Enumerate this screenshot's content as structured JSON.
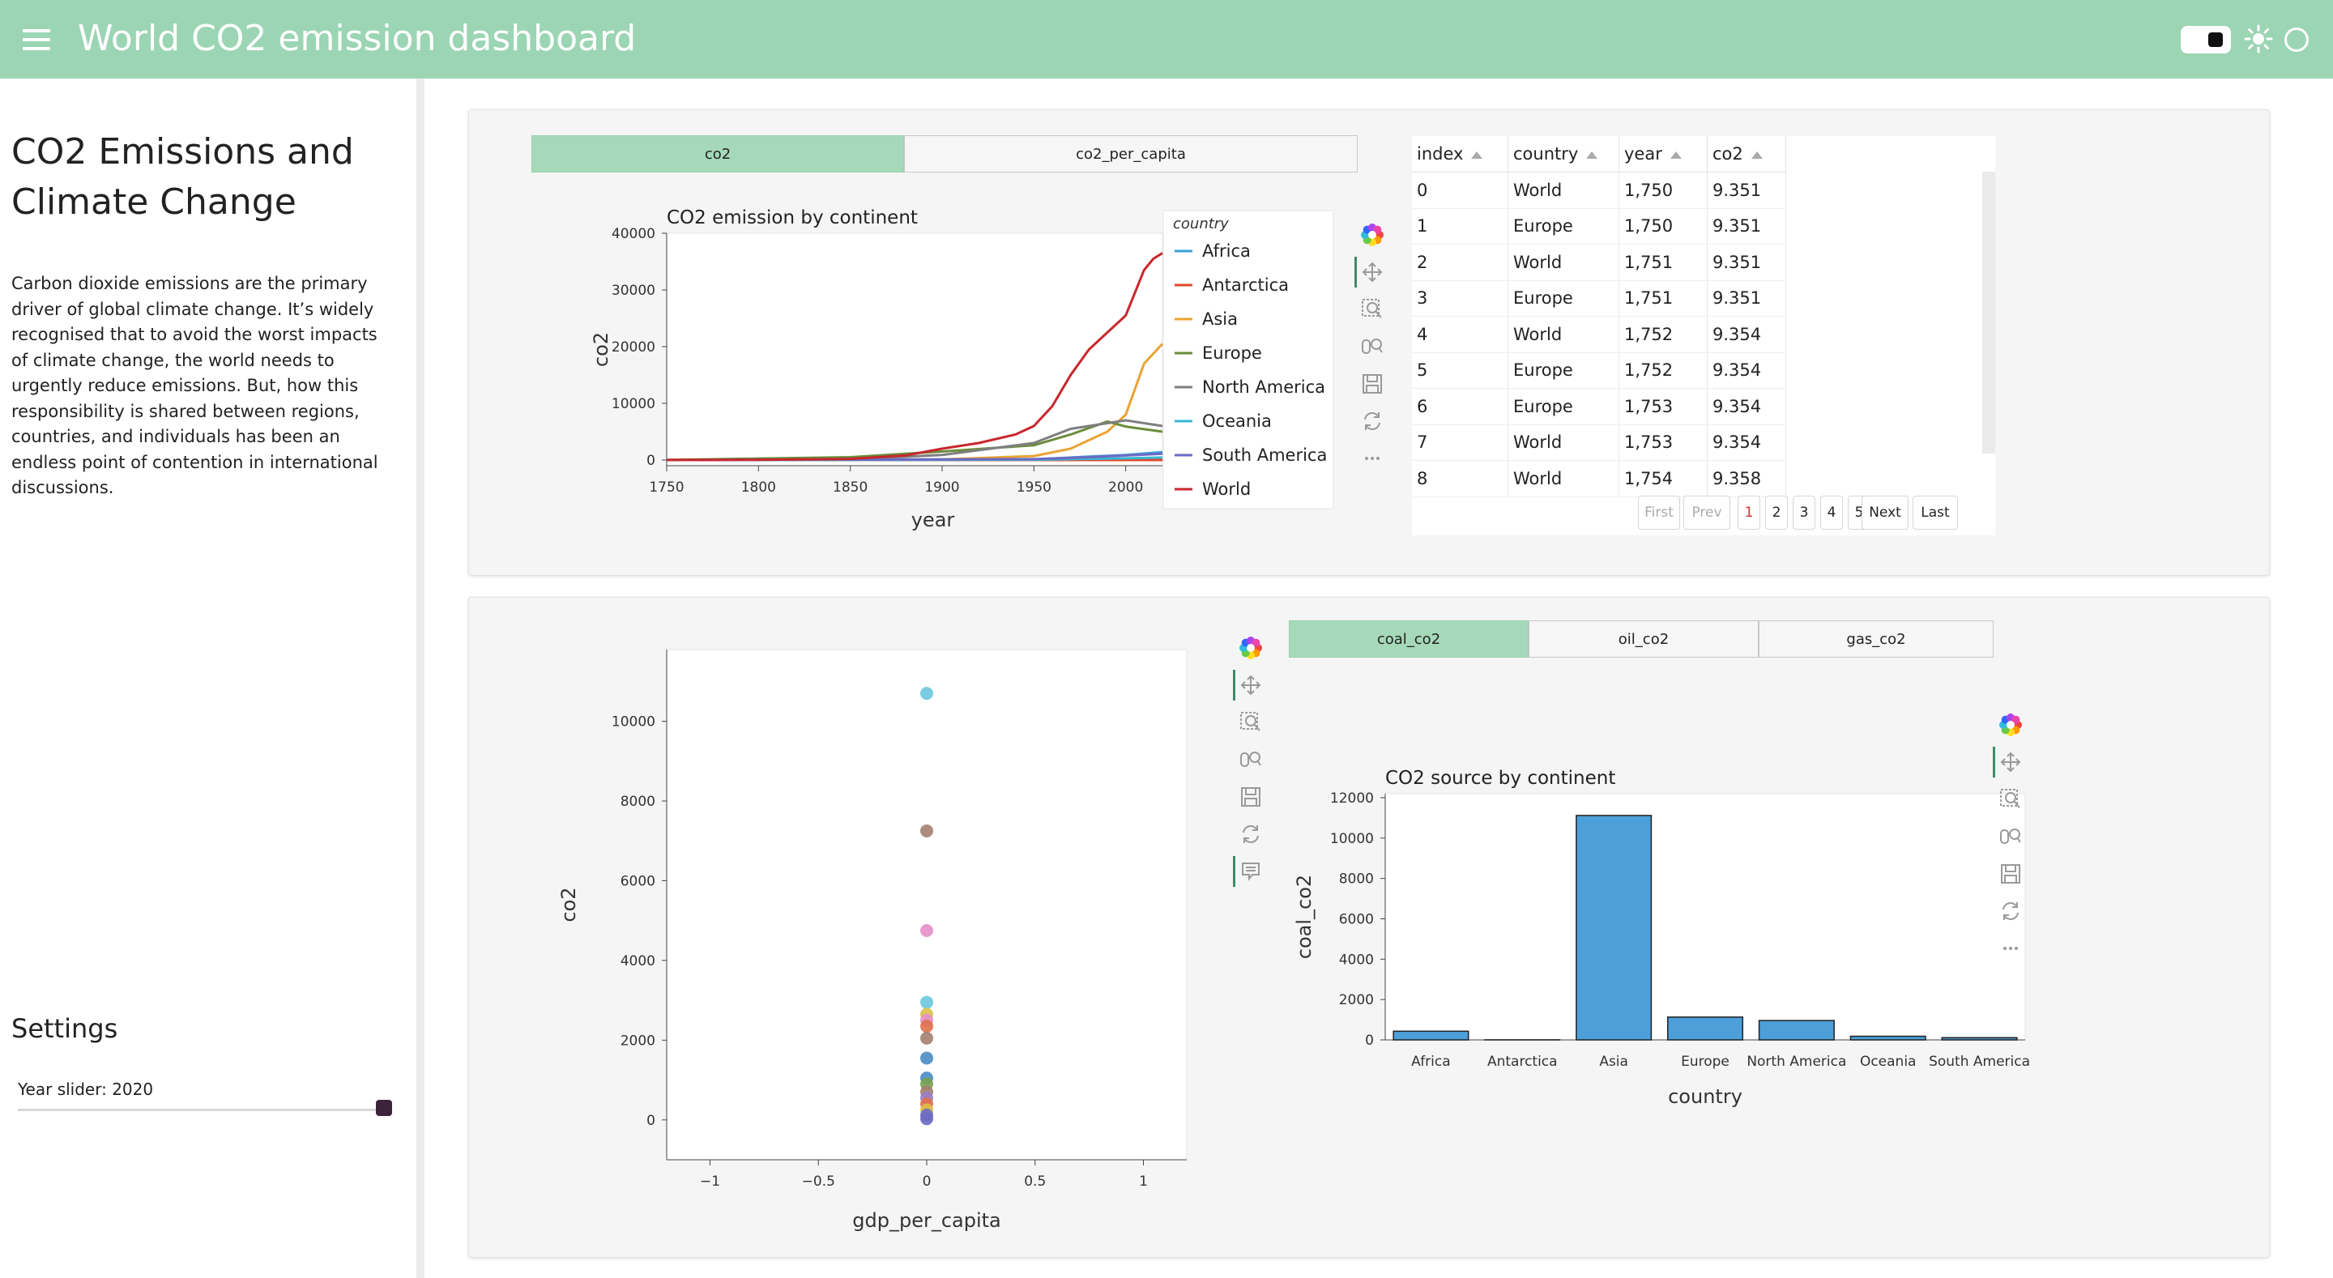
{
  "header": {
    "title": "World CO2 emission dashboard",
    "menu_icon": "hamburger-menu-icon",
    "theme_toggle_icon": "toggle-icon",
    "sun_icon": "sun-icon",
    "circle_icon": "circle-icon"
  },
  "sidebar": {
    "title": "CO2 Emissions and Climate Change",
    "description": "Carbon dioxide emissions are the primary driver of global climate change. It’s widely recognised that to avoid the worst impacts of climate change, the world needs to urgently reduce emissions. But, how this responsibility is shared between regions, countries, and individuals has been an endless point of contention in international discussions.",
    "settings_title": "Settings",
    "slider_label": "Year slider: 2020",
    "slider_value": 2020
  },
  "top_tabs": [
    {
      "label": "co2",
      "active": true
    },
    {
      "label": "co2_per_capita",
      "active": false
    }
  ],
  "bottom_tabs": [
    {
      "label": "coal_co2",
      "active": true
    },
    {
      "label": "oil_co2",
      "active": false
    },
    {
      "label": "gas_co2",
      "active": false
    }
  ],
  "toolbar_icons": [
    "bokeh-logo-icon",
    "pan-icon",
    "box-zoom-icon",
    "wheel-zoom-icon",
    "save-icon",
    "reset-icon",
    "more-icon",
    "hover-icon"
  ],
  "table": {
    "columns": [
      "index",
      "country",
      "year",
      "co2"
    ],
    "rows": [
      [
        "0",
        "World",
        "1,750",
        "9.351"
      ],
      [
        "1",
        "Europe",
        "1,750",
        "9.351"
      ],
      [
        "2",
        "World",
        "1,751",
        "9.351"
      ],
      [
        "3",
        "Europe",
        "1,751",
        "9.351"
      ],
      [
        "4",
        "World",
        "1,752",
        "9.354"
      ],
      [
        "5",
        "Europe",
        "1,752",
        "9.354"
      ],
      [
        "6",
        "Europe",
        "1,753",
        "9.354"
      ],
      [
        "7",
        "World",
        "1,753",
        "9.354"
      ],
      [
        "8",
        "World",
        "1,754",
        "9.358"
      ]
    ],
    "pager": {
      "first": "First",
      "prev": "Prev",
      "pages": [
        "1",
        "2",
        "3",
        "4",
        "5"
      ],
      "current": "1",
      "next": "Next",
      "last": "Last"
    }
  },
  "chart_data": [
    {
      "type": "line",
      "title": "CO2 emission by continent",
      "xlabel": "year",
      "ylabel": "co2",
      "xlim": [
        1750,
        2020
      ],
      "ylim": [
        -1000,
        40000
      ],
      "xticks": [
        1750,
        1800,
        1850,
        1900,
        1950,
        2000
      ],
      "yticks": [
        0,
        10000,
        20000,
        30000,
        40000
      ],
      "legend_title": "country",
      "legend_position": "right",
      "series": [
        {
          "name": "Africa",
          "color": "#3a9fd8",
          "x": [
            1750,
            1900,
            1950,
            1980,
            2000,
            2020
          ],
          "y": [
            0,
            10,
            100,
            600,
            900,
            1400
          ]
        },
        {
          "name": "Antarctica",
          "color": "#e0482b",
          "x": [
            1750,
            2020
          ],
          "y": [
            0,
            0
          ]
        },
        {
          "name": "Asia",
          "color": "#eaa333",
          "x": [
            1750,
            1900,
            1950,
            1970,
            1990,
            2000,
            2010,
            2020
          ],
          "y": [
            0,
            100,
            700,
            2000,
            5000,
            8000,
            17000,
            20500
          ]
        },
        {
          "name": "Europe",
          "color": "#6b8c3c",
          "x": [
            1750,
            1850,
            1900,
            1950,
            1970,
            1990,
            2000,
            2020
          ],
          "y": [
            10,
            500,
            1500,
            2600,
            4500,
            6800,
            5900,
            5000
          ]
        },
        {
          "name": "North America",
          "color": "#7f7f7f",
          "x": [
            1750,
            1850,
            1900,
            1950,
            1970,
            2000,
            2020
          ],
          "y": [
            0,
            100,
            900,
            3000,
            5500,
            7000,
            6000
          ]
        },
        {
          "name": "Oceania",
          "color": "#35b9d3",
          "x": [
            1750,
            1950,
            2000,
            2020
          ],
          "y": [
            0,
            50,
            300,
            450
          ]
        },
        {
          "name": "South America",
          "color": "#6c6ac4",
          "x": [
            1750,
            1950,
            1980,
            2000,
            2020
          ],
          "y": [
            0,
            150,
            500,
            800,
            1100
          ]
        },
        {
          "name": "World",
          "color": "#c8272d",
          "x": [
            1750,
            1800,
            1850,
            1880,
            1900,
            1920,
            1940,
            1950,
            1960,
            1970,
            1980,
            1990,
            2000,
            2010,
            2015,
            2020
          ],
          "y": [
            9,
            30,
            200,
            800,
            2000,
            3000,
            4500,
            6000,
            9500,
            15000,
            19500,
            22500,
            25500,
            33500,
            35500,
            36500
          ]
        }
      ]
    },
    {
      "type": "scatter",
      "title": "",
      "xlabel": "gdp_per_capita",
      "ylabel": "co2",
      "xlim": [
        -1.2,
        1.2
      ],
      "ylim": [
        -1000,
        11800
      ],
      "xticks": [
        -1,
        -0.5,
        0,
        0.5,
        1
      ],
      "yticks": [
        0,
        2000,
        4000,
        6000,
        8000,
        10000
      ],
      "points": [
        {
          "x": 0,
          "y": 10700,
          "color": "#6cc7dd"
        },
        {
          "x": 0,
          "y": 7250,
          "color": "#a3806f"
        },
        {
          "x": 0,
          "y": 4750,
          "color": "#e58fc9"
        },
        {
          "x": 0,
          "y": 2950,
          "color": "#6cc7dd"
        },
        {
          "x": 0,
          "y": 2650,
          "color": "#d9c04a"
        },
        {
          "x": 0,
          "y": 2500,
          "color": "#e58fc9"
        },
        {
          "x": 0,
          "y": 2350,
          "color": "#e0704a"
        },
        {
          "x": 0,
          "y": 2050,
          "color": "#a3806f"
        },
        {
          "x": 0,
          "y": 1550,
          "color": "#4a8cc4"
        },
        {
          "x": 0,
          "y": 1050,
          "color": "#4a8cc4"
        },
        {
          "x": 0,
          "y": 900,
          "color": "#7aa24d"
        },
        {
          "x": 0,
          "y": 700,
          "color": "#a3806f"
        },
        {
          "x": 0,
          "y": 550,
          "color": "#9a7ec9"
        },
        {
          "x": 0,
          "y": 400,
          "color": "#e0704a"
        },
        {
          "x": 0,
          "y": 250,
          "color": "#d9c04a"
        },
        {
          "x": 0,
          "y": 120,
          "color": "#6c6ac4"
        },
        {
          "x": 0,
          "y": 30,
          "color": "#6c6ac4"
        }
      ]
    },
    {
      "type": "bar",
      "title": "CO2 source by continent",
      "xlabel": "country",
      "ylabel": "coal_co2",
      "categories": [
        "Africa",
        "Antarctica",
        "Asia",
        "Europe",
        "North America",
        "Oceania",
        "South America"
      ],
      "values": [
        430,
        5,
        11120,
        1130,
        960,
        180,
        110
      ],
      "ylim": [
        0,
        12200
      ],
      "yticks": [
        0,
        2000,
        4000,
        6000,
        8000,
        10000,
        12000
      ],
      "color": "#4c9fd9"
    }
  ]
}
